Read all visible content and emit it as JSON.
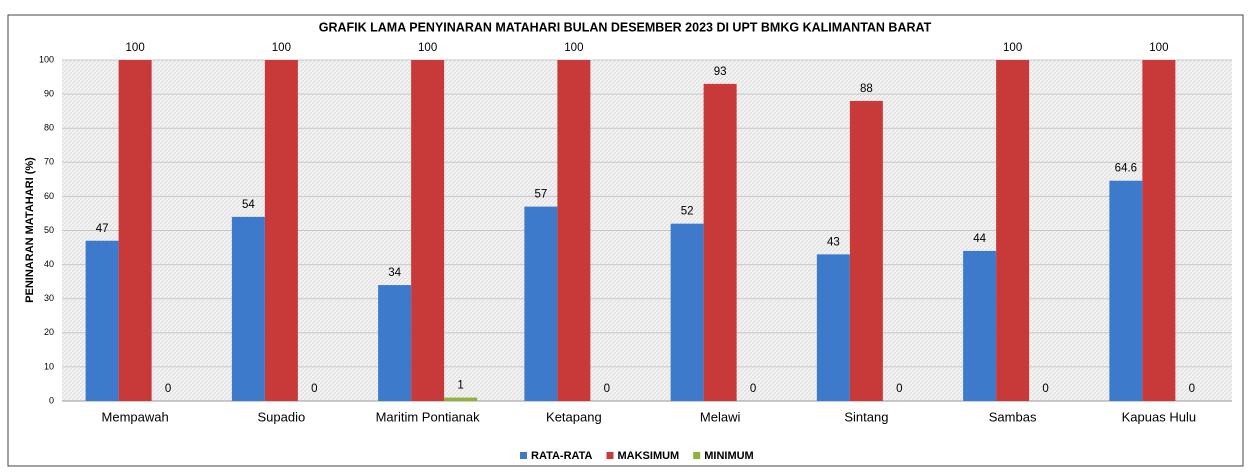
{
  "chart_data": {
    "type": "bar",
    "title": "GRAFIK LAMA PENYINARAN MATAHARI BULAN DESEMBER 2023 DI UPT BMKG KALIMANTAN BARAT",
    "y_label": "PENINARAN MATAHARI (%)",
    "categories": [
      "Mempawah",
      "Supadio",
      "Maritim Pontianak",
      "Ketapang",
      "Melawi",
      "Sintang",
      "Sambas",
      "Kapuas Hulu"
    ],
    "series": [
      {
        "name": "RATA-RATA",
        "color": "#3d7acb",
        "values": [
          47,
          54,
          34,
          57,
          52,
          43,
          44,
          64.6
        ]
      },
      {
        "name": "MAKSIMUM",
        "color": "#c83a3a",
        "values": [
          100,
          100,
          100,
          100,
          93,
          88,
          100,
          100
        ]
      },
      {
        "name": "MINIMUM",
        "color": "#8db33a",
        "values": [
          0,
          0,
          1,
          0,
          0,
          0,
          0,
          0
        ]
      }
    ],
    "ylim": [
      0,
      100
    ],
    "yticks": [
      0,
      10,
      20,
      30,
      40,
      50,
      60,
      70,
      80,
      90,
      100
    ],
    "grid": true,
    "legend": "bottom"
  }
}
